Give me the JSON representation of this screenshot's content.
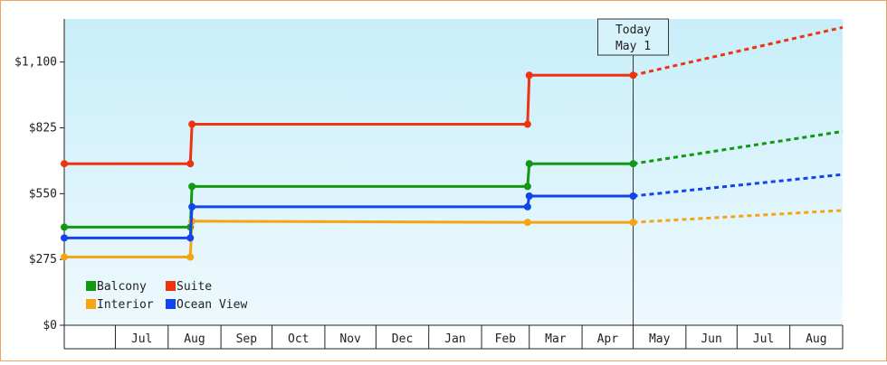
{
  "chart_data": {
    "type": "line",
    "title": "",
    "xlabel": "",
    "ylabel": "",
    "ylim": [
      0,
      1280
    ],
    "y_ticks": [
      0,
      275,
      550,
      825,
      1100
    ],
    "y_tick_labels": [
      "$0",
      "$275",
      "$550",
      "$825",
      "$1,100"
    ],
    "x_range": [
      "2016-06-01",
      "2017-09-01"
    ],
    "month_labels": [
      {
        "label": "Jul",
        "date": "2016-07-01"
      },
      {
        "label": "Aug",
        "date": "2016-08-01"
      },
      {
        "label": "Sep",
        "date": "2016-09-01"
      },
      {
        "label": "Oct",
        "date": "2016-10-01"
      },
      {
        "label": "Nov",
        "date": "2016-11-01"
      },
      {
        "label": "Dec",
        "date": "2016-12-01"
      },
      {
        "label": "Jan",
        "date": "2017-01-01"
      },
      {
        "label": "Feb",
        "date": "2017-02-01"
      },
      {
        "label": "Mar",
        "date": "2017-03-01"
      },
      {
        "label": "Apr",
        "date": "2017-04-01"
      },
      {
        "label": "May",
        "date": "2017-05-01"
      },
      {
        "label": "Jun",
        "date": "2017-06-01"
      },
      {
        "label": "Jul",
        "date": "2017-07-01"
      },
      {
        "label": "Aug",
        "date": "2017-08-01"
      }
    ],
    "today": {
      "label_line1": "Today",
      "label_line2": "May 1",
      "date": "2017-05-01"
    },
    "grid": false,
    "legend_position": "bottom-left",
    "series": [
      {
        "name": "Balcony",
        "color": "#119911",
        "points": [
          [
            "2016-06-01",
            410
          ],
          [
            "2016-08-14",
            410
          ],
          [
            "2016-08-15",
            580
          ],
          [
            "2017-02-28",
            580
          ],
          [
            "2017-03-01",
            675
          ],
          [
            "2017-05-01",
            675
          ]
        ],
        "projection": [
          [
            "2017-05-01",
            675
          ],
          [
            "2017-09-01",
            810
          ]
        ]
      },
      {
        "name": "Suite",
        "color": "#ee3311",
        "points": [
          [
            "2016-06-01",
            675
          ],
          [
            "2016-08-14",
            675
          ],
          [
            "2016-08-15",
            840
          ],
          [
            "2017-02-28",
            840
          ],
          [
            "2017-03-01",
            1045
          ],
          [
            "2017-05-01",
            1045
          ]
        ],
        "projection": [
          [
            "2017-05-01",
            1045
          ],
          [
            "2017-09-01",
            1245
          ]
        ]
      },
      {
        "name": "Interior",
        "color": "#f5a511",
        "points": [
          [
            "2016-06-01",
            285
          ],
          [
            "2016-08-14",
            285
          ],
          [
            "2016-08-15",
            435
          ],
          [
            "2017-02-28",
            430
          ],
          [
            "2017-05-01",
            430
          ]
        ],
        "projection": [
          [
            "2017-05-01",
            430
          ],
          [
            "2017-09-01",
            480
          ]
        ]
      },
      {
        "name": "Ocean View",
        "color": "#1144ee",
        "points": [
          [
            "2016-06-01",
            365
          ],
          [
            "2016-08-14",
            365
          ],
          [
            "2016-08-15",
            495
          ],
          [
            "2017-02-28",
            495
          ],
          [
            "2017-03-01",
            540
          ],
          [
            "2017-05-01",
            540
          ]
        ],
        "projection": [
          [
            "2017-05-01",
            540
          ],
          [
            "2017-09-01",
            630
          ]
        ]
      }
    ]
  }
}
